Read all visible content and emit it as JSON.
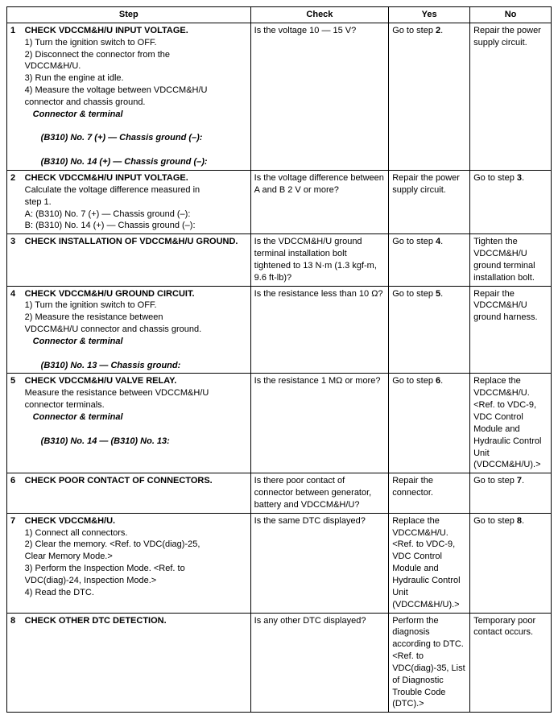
{
  "header": {
    "step": "Step",
    "check": "Check",
    "yes": "Yes",
    "no": "No"
  },
  "rows": [
    {
      "num": "1",
      "title": "CHECK VDCCM&H/U INPUT VOLTAGE.",
      "lines": [
        {
          "t": "1)  Turn the ignition switch to OFF.",
          "cls": "sub"
        },
        {
          "t": "2)  Disconnect the connector from the",
          "cls": "sub"
        },
        {
          "t": "VDCCM&H/U.",
          "cls": "sub"
        },
        {
          "t": "3)  Run the engine at idle.",
          "cls": "sub"
        },
        {
          "t": "4)  Measure the voltage between VDCCM&H/U",
          "cls": "sub"
        },
        {
          "t": "connector and chassis ground.",
          "cls": "sub"
        },
        {
          "t": "Connector & terminal",
          "cls": "bi indent1"
        },
        {
          "t": "(B310) No. 7 (+) — Chassis ground (–):",
          "cls": "bi indent2"
        },
        {
          "t": "(B310) No. 14 (+) — Chassis ground (–):",
          "cls": "bi indent2"
        }
      ],
      "check": "Is the voltage 10 — 15 V?",
      "yes": "Go to step 2.",
      "no": "Repair the power supply circuit."
    },
    {
      "num": "2",
      "title": "CHECK VDCCM&H/U INPUT VOLTAGE.",
      "lines": [
        {
          "t": "Calculate the voltage difference measured in",
          "cls": "sub"
        },
        {
          "t": "step 1.",
          "cls": "sub"
        },
        {
          "t": "A: (B310) No. 7 (+) — Chassis ground (–):",
          "cls": "sub"
        },
        {
          "t": "B: (B310) No. 14 (+) — Chassis ground (–):",
          "cls": "sub"
        }
      ],
      "check": "Is the voltage difference between A and B 2 V or more?",
      "yes": "Repair the power supply circuit.",
      "no": "Go to step 3."
    },
    {
      "num": "3",
      "title": "CHECK INSTALLATION OF VDCCM&H/U GROUND.",
      "lines": [],
      "check": "Is the VDCCM&H/U ground terminal installation bolt tightened to 13 N·m (1.3 kgf-m, 9.6 ft-lb)?",
      "yes": "Go to step 4.",
      "no": "Tighten the VDCCM&H/U ground terminal installation bolt."
    },
    {
      "num": "4",
      "title": "CHECK VDCCM&H/U GROUND CIRCUIT.",
      "lines": [
        {
          "t": "1)  Turn the ignition switch to OFF.",
          "cls": "sub"
        },
        {
          "t": "2)  Measure the resistance between",
          "cls": "sub"
        },
        {
          "t": "VDCCM&H/U connector and chassis ground.",
          "cls": "sub"
        },
        {
          "t": "Connector & terminal",
          "cls": "bi indent1"
        },
        {
          "t": "(B310) No. 13 — Chassis ground:",
          "cls": "bi indent2"
        }
      ],
      "check": "Is the resistance less than 10 Ω?",
      "yes": "Go to step 5.",
      "no": "Repair the VDCCM&H/U ground harness."
    },
    {
      "num": "5",
      "title": "CHECK VDCCM&H/U VALVE RELAY.",
      "lines": [
        {
          "t": "Measure the resistance between VDCCM&H/U",
          "cls": "sub"
        },
        {
          "t": "connector terminals.",
          "cls": "sub"
        },
        {
          "t": "Connector & terminal",
          "cls": "bi indent1"
        },
        {
          "t": "(B310) No. 14 — (B310) No. 13:",
          "cls": "bi indent2"
        }
      ],
      "check": "Is the resistance 1 MΩ or more?",
      "yes": "Go to step 6.",
      "no": "Replace the VDCCM&H/U. <Ref. to VDC-9, VDC Control Module and Hydraulic Control Unit (VDCCM&H/U).>"
    },
    {
      "num": "6",
      "title": "CHECK POOR CONTACT OF CONNECTORS.",
      "lines": [],
      "check": "Is there poor contact of connector between generator, battery and VDCCM&H/U?",
      "yes": "Repair the connector.",
      "no": "Go to step 7."
    },
    {
      "num": "7",
      "title": "CHECK VDCCM&H/U.",
      "lines": [
        {
          "t": "1)  Connect all connectors.",
          "cls": "sub"
        },
        {
          "t": "2)  Clear the memory. <Ref. to VDC(diag)-25,",
          "cls": "sub"
        },
        {
          "t": "Clear Memory Mode.>",
          "cls": "sub"
        },
        {
          "t": "3)  Perform the Inspection Mode. <Ref. to",
          "cls": "sub"
        },
        {
          "t": "VDC(diag)-24, Inspection Mode.>",
          "cls": "sub"
        },
        {
          "t": "4)  Read the DTC.",
          "cls": "sub"
        }
      ],
      "check": "Is the same DTC displayed?",
      "yes": "Replace the VDCCM&H/U. <Ref. to VDC-9, VDC Control Module and Hydraulic Control Unit (VDCCM&H/U).>",
      "no": "Go to step 8."
    },
    {
      "num": "8",
      "title": "CHECK OTHER DTC DETECTION.",
      "lines": [],
      "check": "Is any other DTC displayed?",
      "yes": "Perform the diagnosis according to DTC. <Ref. to VDC(diag)-35, List of Diagnostic Trouble Code (DTC).>",
      "no": "Temporary poor contact occurs."
    }
  ]
}
